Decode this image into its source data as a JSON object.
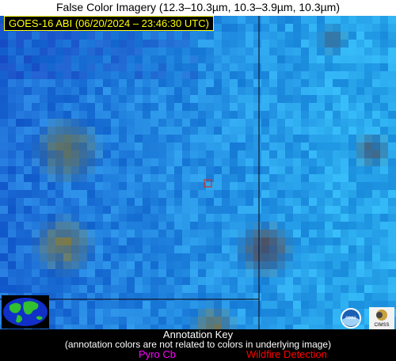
{
  "header": {
    "title": "False Color Imagery (12.3–10.3µm, 10.3–3.9µm, 10.3µm)"
  },
  "image_label": "GOES-16 ABI (06/20/2024 – 23:46:30 UTC)",
  "annotation_key": {
    "title": "Annotation Key",
    "note": "(annotation colors are not related to colors in underlying image)",
    "items": [
      "Pyro Cb",
      "Wildfire Detection"
    ]
  },
  "logos": [
    "noaa",
    "CIMSS"
  ]
}
